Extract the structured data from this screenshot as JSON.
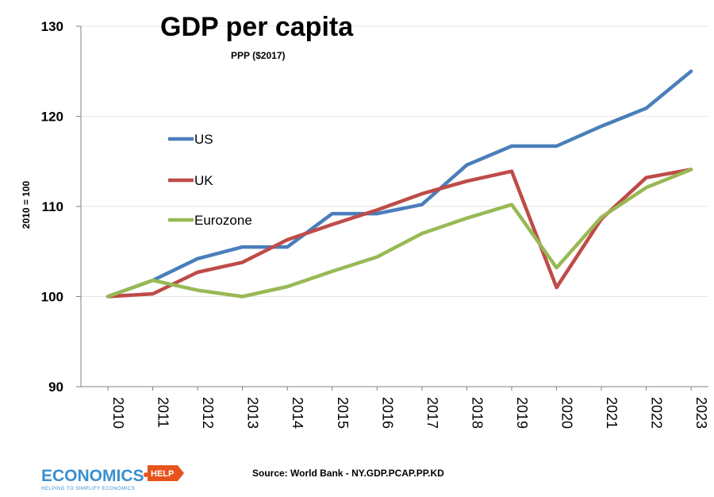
{
  "chart_data": {
    "type": "line",
    "title": "GDP per capita",
    "subtitle": "PPP ($2017)",
    "ylabel": "2010 = 100",
    "xlabel": "",
    "ylim": [
      90,
      130
    ],
    "yticks": [
      90,
      100,
      110,
      120,
      130
    ],
    "categories": [
      "2010",
      "2011",
      "2012",
      "2013",
      "2014",
      "2015",
      "2016",
      "2017",
      "2018",
      "2019",
      "2020",
      "2021",
      "2022",
      "2023"
    ],
    "series": [
      {
        "name": "US",
        "color": "#4a7ebb",
        "values": [
          100,
          101.8,
          104.2,
          105.5,
          105.5,
          109.2,
          109.2,
          110.2,
          114.6,
          116.7,
          116.7,
          118.9,
          120.9,
          125.0
        ]
      },
      {
        "name": "UK",
        "color": "#be4b48",
        "values": [
          100,
          100.3,
          102.7,
          103.8,
          106.3,
          108.0,
          109.6,
          111.4,
          112.8,
          113.9,
          101.0,
          108.6,
          113.2,
          114.1
        ]
      },
      {
        "name": "Eurozone",
        "color": "#98b954",
        "values": [
          100,
          101.8,
          100.7,
          100.0,
          101.1,
          102.8,
          104.4,
          107.0,
          108.7,
          110.2,
          103.2,
          108.8,
          112.1,
          114.1
        ]
      }
    ],
    "legend_position": "left-inside",
    "grid": true
  },
  "source": "Source:  World Bank - NY.GDP.PCAP.PP.KD",
  "logo": {
    "main": "ECONOMICS",
    "badge": "HELP",
    "tagline": "HELPING TO SIMPLIFY ECONOMICS"
  }
}
